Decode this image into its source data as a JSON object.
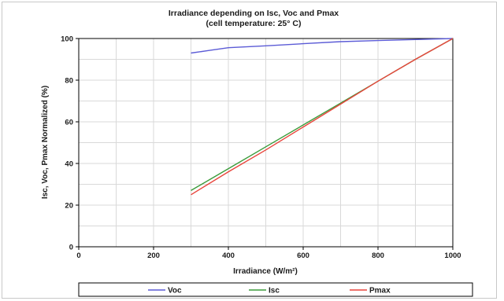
{
  "chart_data": {
    "type": "line",
    "title": "Irradiance depending on Isc, Voc and Pmax",
    "subtitle": "(cell temperature: 25° C)",
    "xlabel": "Irradiance (W/m²)",
    "ylabel": "Isc, Voc, Pmax Normalized (%)",
    "xlim": [
      0,
      1000
    ],
    "ylim": [
      0,
      100
    ],
    "xticks": [
      "0",
      "200",
      "400",
      "600",
      "800",
      "1000"
    ],
    "yticks": [
      "0",
      "20",
      "40",
      "60",
      "80",
      "100"
    ],
    "grid": true,
    "legend_position": "bottom",
    "series": [
      {
        "name": "Voc",
        "color": "#5b5bd6",
        "x": [
          300,
          350,
          400,
          500,
          600,
          700,
          800,
          900,
          1000
        ],
        "y": [
          93,
          94.3,
          95.6,
          96.5,
          97.5,
          98.5,
          99.0,
          99.5,
          100
        ]
      },
      {
        "name": "Isc",
        "color": "#3b9c3b",
        "x": [
          300,
          400,
          500,
          600,
          700,
          800,
          900,
          1000
        ],
        "y": [
          27,
          37.5,
          48,
          58.5,
          69,
          79.5,
          90,
          100
        ]
      },
      {
        "name": "Pmax",
        "color": "#e8453c",
        "x": [
          300,
          400,
          500,
          600,
          700,
          800,
          900,
          1000
        ],
        "y": [
          25,
          36,
          46.5,
          57.5,
          68.5,
          79.5,
          90,
          100
        ]
      }
    ]
  }
}
